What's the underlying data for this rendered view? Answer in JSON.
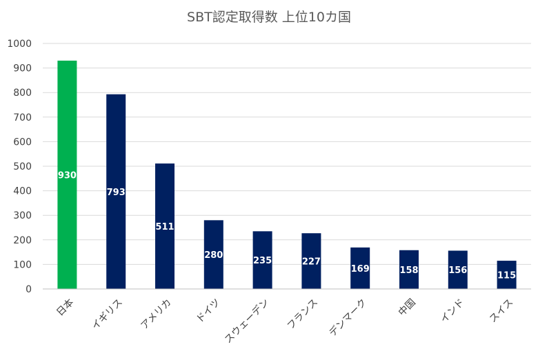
{
  "chart_data": {
    "type": "bar",
    "title": "SBT認定取得数 上位10カ国",
    "xlabel": "",
    "ylabel": "",
    "categories": [
      "日本",
      "イギリス",
      "アメリカ",
      "ドイツ",
      "スウェーデン",
      "フランス",
      "デンマーク",
      "中国",
      "インド",
      "スイス"
    ],
    "values": [
      930,
      793,
      511,
      280,
      235,
      227,
      169,
      158,
      156,
      115
    ],
    "data_labels": [
      "930",
      "793",
      "511",
      "280",
      "235",
      "227",
      "169",
      "158",
      "156",
      "115"
    ],
    "ylim": [
      0,
      1000
    ],
    "yticks": [
      0,
      100,
      200,
      300,
      400,
      500,
      600,
      700,
      800,
      900,
      1000
    ],
    "ytick_labels": [
      "0",
      "100",
      "200",
      "300",
      "400",
      "500",
      "600",
      "700",
      "800",
      "900",
      "1000"
    ],
    "grid": true,
    "legend": "none",
    "colors": {
      "highlight": "#00b050",
      "default": "#002060"
    },
    "highlight_category": "日本"
  }
}
